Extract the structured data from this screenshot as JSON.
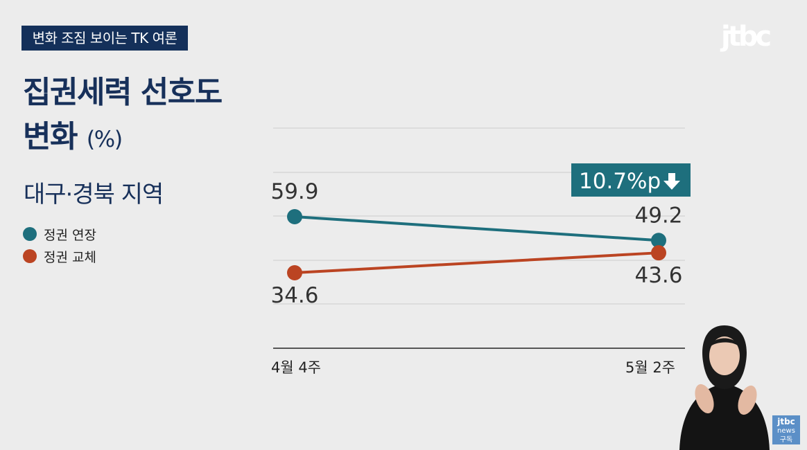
{
  "banner": "변화 조짐 보이는 TK 여론",
  "logo": "jtbc",
  "title_line1": "집권세력 선호도",
  "title_line2": "변화",
  "title_unit": "(%)",
  "subtitle": "대구·경북 지역",
  "colors": {
    "extend": "#1e6f7d",
    "replace": "#bb4422",
    "navy": "#17305a",
    "badge": "#1e6f7d"
  },
  "corner_badge": {
    "line1": "jtbc",
    "line2": "news",
    "line3": "구독"
  },
  "chart_data": {
    "type": "line",
    "categories": [
      "4월 4주",
      "5월 2주"
    ],
    "ylabel": "%",
    "series": [
      {
        "name": "정권 연장",
        "values": [
          59.9,
          49.2
        ],
        "labels": [
          "59.9",
          "49.2"
        ]
      },
      {
        "name": "정권 교체",
        "values": [
          34.6,
          43.6
        ],
        "labels": [
          "34.6",
          "43.6"
        ]
      }
    ],
    "annotation": "10.7%p",
    "legend_position": "left"
  }
}
